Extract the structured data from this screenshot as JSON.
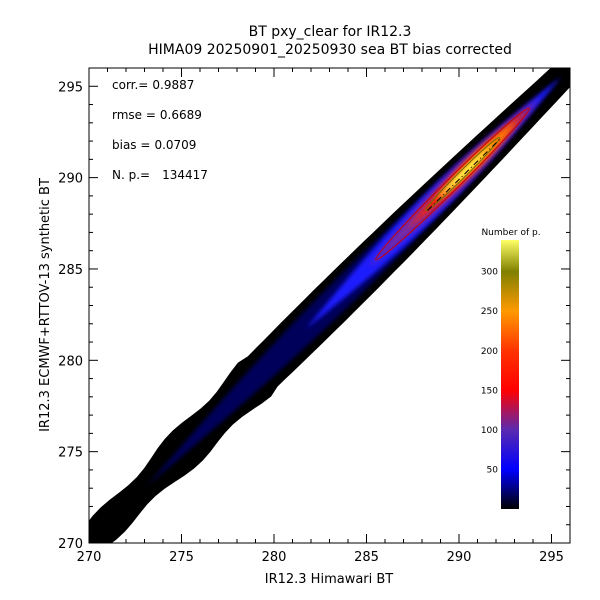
{
  "chart_data": {
    "type": "heatmap",
    "title": "BT pxy_clear for IR12.3",
    "subtitle": "HIMA09 20250901_20250930 sea BT bias corrected",
    "xlabel": "IR12.3 Himawari BT",
    "ylabel": "IR12.3 ECMWF+RTTOV-13 synthetic BT",
    "xlim": [
      270,
      296
    ],
    "ylim": [
      270,
      296
    ],
    "x_ticks": [
      270,
      275,
      280,
      285,
      290,
      295
    ],
    "y_ticks": [
      270,
      275,
      280,
      285,
      290,
      295
    ],
    "grid": false,
    "stats": [
      {
        "label": "corr.=",
        "value": "0.9887"
      },
      {
        "label": "rmse =",
        "value": "0.6689"
      },
      {
        "label": "bias =",
        "value": "0.0709"
      },
      {
        "label": "N. p.=",
        "value": "134417"
      }
    ],
    "density": {
      "diagonal_from": [
        270,
        270
      ],
      "diagonal_to": [
        296,
        296
      ],
      "peak_center": [
        290.3,
        290.2
      ],
      "peak_count": 340
    },
    "contour_levels": [
      {
        "level": 150,
        "x_range": [
          285.5,
          293.8
        ],
        "color": "#cc0000"
      },
      {
        "level": 300,
        "x_range": [
          288.2,
          292.2
        ],
        "color": "#707000"
      }
    ],
    "fit_line": {
      "x": [
        288.3,
        292.3
      ],
      "y": [
        288.2,
        292.2
      ],
      "color": "#000000"
    },
    "colorbar": {
      "title": "Number of p.",
      "range": [
        0,
        340
      ],
      "ticks": [
        50,
        100,
        150,
        200,
        250,
        300
      ],
      "stops": [
        {
          "value": 0,
          "color": "#000000"
        },
        {
          "value": 50,
          "color": "#0000ff"
        },
        {
          "value": 100,
          "color": "#5a2ab0"
        },
        {
          "value": 150,
          "color": "#ff0000"
        },
        {
          "value": 200,
          "color": "#ff3300"
        },
        {
          "value": 250,
          "color": "#ff9900"
        },
        {
          "value": 300,
          "color": "#808000"
        },
        {
          "value": 340,
          "color": "#ffff66"
        }
      ]
    }
  }
}
